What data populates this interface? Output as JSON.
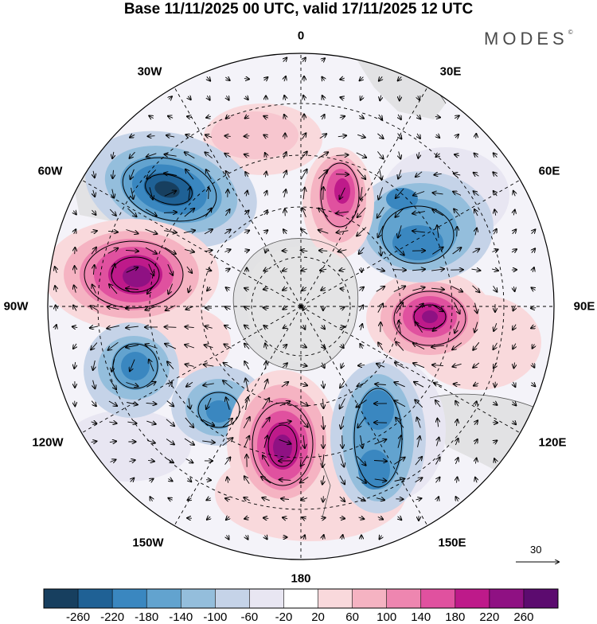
{
  "title": "Base 11/11/2025 00 UTC, valid 17/11/2025 12 UTC",
  "brand": "MODES",
  "brand_mark": "©",
  "longitude_labels": {
    "lon_0": "0",
    "lon_30E": "30E",
    "lon_60E": "60E",
    "lon_90E": "90E",
    "lon_120E": "120E",
    "lon_150E": "150E",
    "lon_180": "180",
    "lon_150W": "150W",
    "lon_120W": "120W",
    "lon_90W": "90W",
    "lon_60W": "60W",
    "lon_30W": "30W"
  },
  "reference_vector": {
    "label": "30"
  },
  "colorbar": {
    "colors": [
      "#173f5f",
      "#1f6195",
      "#3a87c0",
      "#62a3cf",
      "#94bedc",
      "#c5d3e8",
      "#e8e6f2",
      "#ffffff",
      "#f9d9dc",
      "#f5b3c2",
      "#ee86b0",
      "#e0519f",
      "#be1a8a",
      "#8f1183",
      "#5c0b6f"
    ],
    "ticks": [
      "-260",
      "-220",
      "-180",
      "-140",
      "-100",
      "-60",
      "-20",
      "20",
      "60",
      "100",
      "140",
      "180",
      "220",
      "260"
    ]
  },
  "chart_data": {
    "type": "polar_stereographic_anomaly_map",
    "projection": "south polar stereographic",
    "variable_units": "shaded anomaly with wind vectors",
    "colorbar_levels": [
      -260,
      -220,
      -180,
      -140,
      -100,
      -60,
      -20,
      20,
      60,
      100,
      140,
      180,
      220,
      260
    ],
    "features": [
      {
        "name": "negative-anomaly-60W",
        "sign": "negative",
        "peak_level": "-260",
        "approx_lon": "60W"
      },
      {
        "name": "positive-anomaly-85W",
        "sign": "positive",
        "peak_level": "260",
        "approx_lon": "85W"
      },
      {
        "name": "negative-anomaly-110W",
        "sign": "negative",
        "peak_level": "-180",
        "approx_lon": "110W"
      },
      {
        "name": "negative-anomaly-140W",
        "sign": "negative",
        "peak_level": "-180",
        "approx_lon": "140W"
      },
      {
        "name": "positive-anomaly-175W",
        "sign": "positive",
        "peak_level": "260",
        "approx_lon": "175W"
      },
      {
        "name": "negative-anomaly-160E",
        "sign": "negative",
        "peak_level": "-180",
        "approx_lon": "160E"
      },
      {
        "name": "positive-anomaly-95E",
        "sign": "positive",
        "peak_level": "260",
        "approx_lon": "95E"
      },
      {
        "name": "negative-anomaly-55E",
        "sign": "negative",
        "peak_level": "-180",
        "approx_lon": "55E"
      },
      {
        "name": "positive-anomaly-15E",
        "sign": "positive",
        "peak_level": "220",
        "approx_lon": "15E"
      },
      {
        "name": "positive-anomaly-15W",
        "sign": "positive",
        "peak_level": "60",
        "approx_lon": "15W"
      }
    ]
  }
}
